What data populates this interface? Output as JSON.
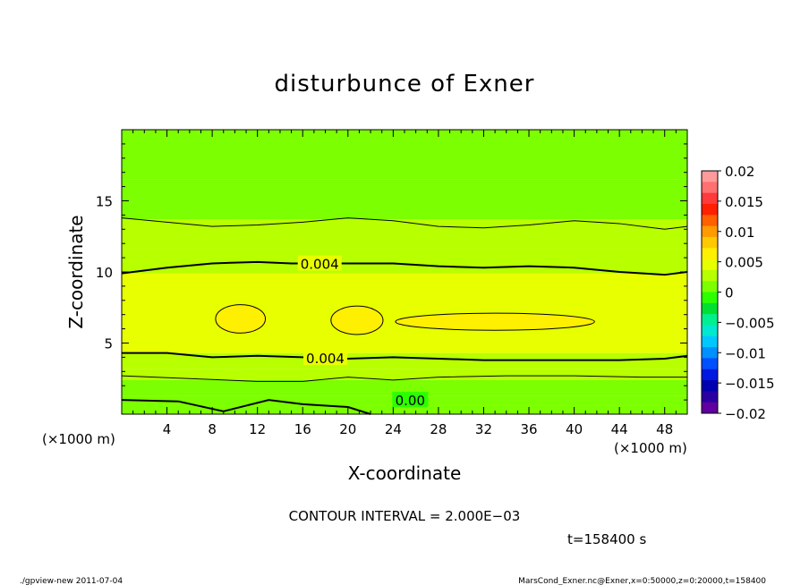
{
  "chart_data": {
    "type": "heatmap",
    "title": "disturbunce of Exner",
    "xlabel": "X-coordinate",
    "ylabel": "Z-coordinate",
    "x_unit": "(×1000 m)",
    "y_unit": "(×1000 m)",
    "xlim": [
      0,
      50
    ],
    "ylim": [
      0,
      20
    ],
    "x_ticks": [
      4,
      8,
      12,
      16,
      20,
      24,
      28,
      32,
      36,
      40,
      44,
      48
    ],
    "y_ticks": [
      5,
      10,
      15
    ],
    "colorbar": {
      "ticks": [
        "0.02",
        "0.015",
        "0.01",
        "0.005",
        "0",
        "−0.005",
        "−0.01",
        "−0.015",
        "−0.02"
      ],
      "levels": [
        0.02,
        0.015,
        0.01,
        0.005,
        0,
        -0.005,
        -0.01,
        -0.015,
        -0.02
      ],
      "colors": [
        "#ff9a9a",
        "#ff7070",
        "#ff3a3a",
        "#ff2000",
        "#ff6000",
        "#ff9a00",
        "#ffc800",
        "#ffef00",
        "#e8ff00",
        "#b8ff00",
        "#7cff00",
        "#2cff00",
        "#00e030",
        "#00f090",
        "#00e8d0",
        "#00c8ff",
        "#0090ff",
        "#0050ff",
        "#0018e0",
        "#0000b0",
        "#2a00a0",
        "#6000a0"
      ]
    },
    "field_bands": [
      {
        "z_bottom": 0,
        "z_top": 0.6,
        "value": 0.0005
      },
      {
        "z_bottom": 0.6,
        "z_top": 1.3,
        "value": 0.001
      },
      {
        "z_bottom": 1.3,
        "z_top": 2.4,
        "value": 0.0015
      },
      {
        "z_bottom": 2.4,
        "z_top": 3.2,
        "value": 0.002
      },
      {
        "z_bottom": 3.2,
        "z_top": 4.3,
        "value": 0.003
      },
      {
        "z_bottom": 4.3,
        "z_top": 5.5,
        "value": 0.0042
      },
      {
        "z_bottom": 5.5,
        "z_top": 8.3,
        "value": 0.0052
      },
      {
        "z_bottom": 8.3,
        "z_top": 9.9,
        "value": 0.0042
      },
      {
        "z_bottom": 9.9,
        "z_top": 11.6,
        "value": 0.003
      },
      {
        "z_bottom": 11.6,
        "z_top": 13.7,
        "value": 0.002
      },
      {
        "z_bottom": 13.7,
        "z_top": 16.5,
        "value": 0.0012
      },
      {
        "z_bottom": 16.5,
        "z_top": 20,
        "value": 0.0006
      }
    ],
    "contours": [
      {
        "level": 0.0,
        "label": "0.00",
        "label_x": 25.5,
        "points": [
          [
            0,
            1.0
          ],
          [
            5,
            0.9
          ],
          [
            9,
            0.2
          ],
          [
            13,
            1.0
          ],
          [
            16,
            0.7
          ],
          [
            20,
            0.5
          ],
          [
            22,
            0.0
          ]
        ]
      },
      {
        "level": 0.002,
        "label": "",
        "label_x": null,
        "points": [
          [
            0,
            2.7
          ],
          [
            6,
            2.5
          ],
          [
            12,
            2.3
          ],
          [
            16,
            2.3
          ],
          [
            20,
            2.6
          ],
          [
            24,
            2.4
          ],
          [
            28,
            2.6
          ],
          [
            34,
            2.7
          ],
          [
            40,
            2.7
          ],
          [
            46,
            2.6
          ],
          [
            50,
            2.6
          ]
        ]
      },
      {
        "level": 0.004,
        "label": "0.004",
        "label_x": 18,
        "points": [
          [
            0,
            4.3
          ],
          [
            4,
            4.3
          ],
          [
            8,
            4.0
          ],
          [
            12,
            4.1
          ],
          [
            16,
            4.0
          ],
          [
            20,
            3.9
          ],
          [
            24,
            4.0
          ],
          [
            28,
            3.9
          ],
          [
            32,
            3.8
          ],
          [
            36,
            3.8
          ],
          [
            40,
            3.8
          ],
          [
            44,
            3.8
          ],
          [
            48,
            3.9
          ],
          [
            50,
            4.1
          ]
        ]
      },
      {
        "level": 0.004,
        "label": "0.004",
        "label_x": 17.5,
        "points": [
          [
            0,
            9.9
          ],
          [
            4,
            10.3
          ],
          [
            8,
            10.6
          ],
          [
            12,
            10.7
          ],
          [
            15,
            10.6
          ],
          [
            20,
            10.6
          ],
          [
            24,
            10.6
          ],
          [
            28,
            10.4
          ],
          [
            32,
            10.3
          ],
          [
            36,
            10.4
          ],
          [
            40,
            10.3
          ],
          [
            44,
            10.0
          ],
          [
            48,
            9.8
          ],
          [
            50,
            10.0
          ]
        ]
      },
      {
        "level": 0.002,
        "label": "",
        "label_x": null,
        "points": [
          [
            0,
            13.8
          ],
          [
            4,
            13.5
          ],
          [
            8,
            13.2
          ],
          [
            12,
            13.3
          ],
          [
            16,
            13.5
          ],
          [
            20,
            13.8
          ],
          [
            24,
            13.6
          ],
          [
            28,
            13.2
          ],
          [
            32,
            13.1
          ],
          [
            36,
            13.3
          ],
          [
            40,
            13.6
          ],
          [
            44,
            13.4
          ],
          [
            48,
            13.0
          ],
          [
            50,
            13.2
          ]
        ]
      }
    ],
    "closed_contours": [
      {
        "level": 0.006,
        "cx": 10.5,
        "cz": 6.7,
        "rx": 2.2,
        "rz": 1.0
      },
      {
        "level": 0.006,
        "cx": 20.8,
        "cz": 6.6,
        "rx": 2.3,
        "rz": 1.0
      },
      {
        "level": 0.006,
        "cx": 33.0,
        "cz": 6.5,
        "rx": 8.8,
        "rz": 0.6
      }
    ]
  },
  "contour_interval": "CONTOUR INTERVAL = 2.000E−03",
  "time_label": "t=158400 s",
  "footer_left": "./gpview-new   2011-07-04",
  "footer_right": "MarsCond_Exner.nc@Exner,x=0:50000,z=0:20000,t=158400"
}
